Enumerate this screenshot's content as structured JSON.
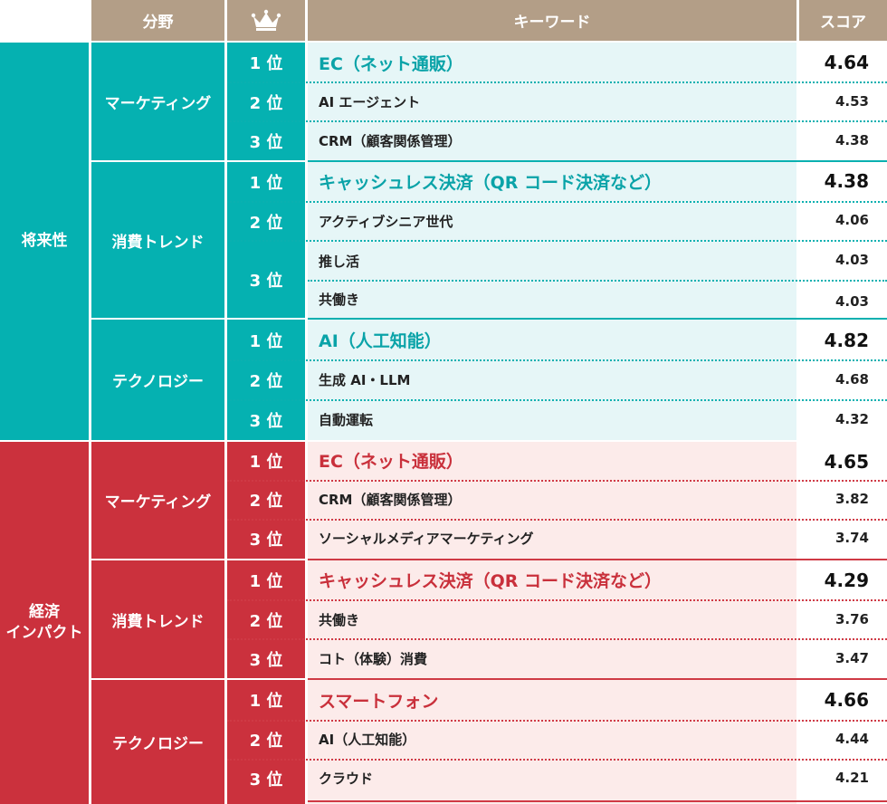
{
  "header": {
    "field": "分野",
    "rank_icon": "crown-icon",
    "keyword": "キーワード",
    "score": "スコア"
  },
  "colors": {
    "header": "#b39e87",
    "future": "#05b1b1",
    "impact": "#cb313d"
  },
  "categories": [
    {
      "label": "将来性",
      "fields": [
        {
          "name": "マーケティング",
          "rows": [
            {
              "rank": "1 位",
              "keyword": "EC（ネット通販）",
              "score": "4.64"
            },
            {
              "rank": "2 位",
              "keyword": "AI エージェント",
              "score": "4.53"
            },
            {
              "rank": "3 位",
              "keyword": "CRM（顧客関係管理）",
              "score": "4.38"
            }
          ]
        },
        {
          "name": "消費トレンド",
          "rows": [
            {
              "rank": "1 位",
              "keyword": "キャッシュレス決済（QR コード決済など）",
              "score": "4.38"
            },
            {
              "rank": "2 位",
              "keyword": "アクティブシニア世代",
              "score": "4.06"
            },
            {
              "rank": "3 位",
              "keyword": "推し活",
              "score": "4.03"
            },
            {
              "rank": "",
              "keyword": "共働き",
              "score": "4.03"
            }
          ]
        },
        {
          "name": "テクノロジー",
          "rows": [
            {
              "rank": "1 位",
              "keyword": "AI（人工知能）",
              "score": "4.82"
            },
            {
              "rank": "2 位",
              "keyword": "生成 AI・LLM",
              "score": "4.68"
            },
            {
              "rank": "3 位",
              "keyword": "自動運転",
              "score": "4.32"
            }
          ]
        }
      ]
    },
    {
      "label": "経済\nインパクト",
      "fields": [
        {
          "name": "マーケティング",
          "rows": [
            {
              "rank": "1 位",
              "keyword": "EC（ネット通販）",
              "score": "4.65"
            },
            {
              "rank": "2 位",
              "keyword": "CRM（顧客関係管理）",
              "score": "3.82"
            },
            {
              "rank": "3 位",
              "keyword": "ソーシャルメディアマーケティング",
              "score": "3.74"
            }
          ]
        },
        {
          "name": "消費トレンド",
          "rows": [
            {
              "rank": "1 位",
              "keyword": "キャッシュレス決済（QR コード決済など）",
              "score": "4.29"
            },
            {
              "rank": "2 位",
              "keyword": "共働き",
              "score": "3.76"
            },
            {
              "rank": "3 位",
              "keyword": "コト（体験）消費",
              "score": "3.47"
            }
          ]
        },
        {
          "name": "テクノロジー",
          "rows": [
            {
              "rank": "1 位",
              "keyword": "スマートフォン",
              "score": "4.66"
            },
            {
              "rank": "2 位",
              "keyword": "AI（人工知能）",
              "score": "4.44"
            },
            {
              "rank": "3 位",
              "keyword": "クラウド",
              "score": "4.21"
            }
          ]
        }
      ]
    }
  ]
}
